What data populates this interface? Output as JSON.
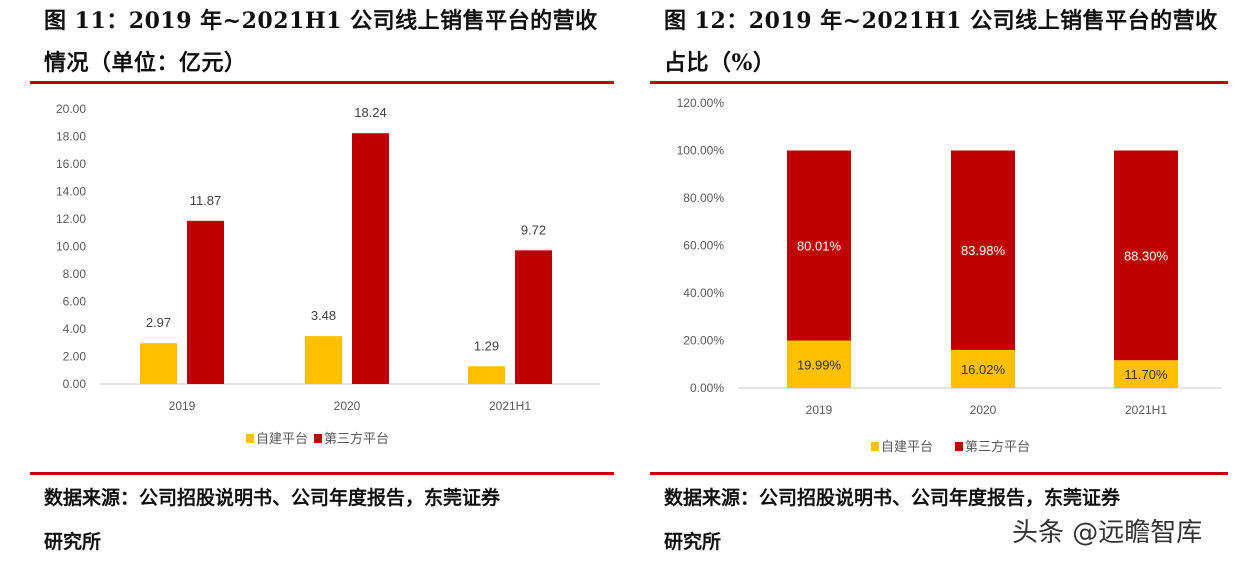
{
  "left": {
    "title_line1": "图 11：2019 年~2021H1 公司线上销售平台的营收",
    "title_line2": "情况（单位：亿元）",
    "source_line1": "数据来源：公司招股说明书、公司年度报告，东莞证券",
    "source_line2": "研究所"
  },
  "right": {
    "title_line1": "图 12：2019 年~2021H1 公司线上销售平台的营收",
    "title_line2": "占比（%）",
    "source_line1": "数据来源：公司招股说明书、公司年度报告，东莞证券",
    "source_line2": "研究所"
  },
  "watermark": "头条 @远瞻智库",
  "colors": {
    "self": "#ffc000",
    "third": "#c00000",
    "rule": "#c00000"
  },
  "chart_data": [
    {
      "type": "bar",
      "categories": [
        "2019",
        "2020",
        "2021H1"
      ],
      "ylim": [
        0,
        20
      ],
      "yticks": [
        "0.00",
        "2.00",
        "4.00",
        "6.00",
        "8.00",
        "10.00",
        "12.00",
        "14.00",
        "16.00",
        "18.00",
        "20.00"
      ],
      "legend": "bottom",
      "grid": false,
      "series": [
        {
          "name": "自建平台",
          "values": [
            2.97,
            3.48,
            1.29
          ],
          "labels": [
            "2.97",
            "3.48",
            "1.29"
          ]
        },
        {
          "name": "第三方平台",
          "values": [
            11.87,
            18.24,
            9.72
          ],
          "labels": [
            "11.87",
            "18.24",
            "9.72"
          ]
        }
      ]
    },
    {
      "type": "bar",
      "stacked": true,
      "categories": [
        "2019",
        "2020",
        "2021H1"
      ],
      "ylim": [
        0,
        120
      ],
      "yticks": [
        "0.00%",
        "20.00%",
        "40.00%",
        "60.00%",
        "80.00%",
        "100.00%",
        "120.00%"
      ],
      "legend": "bottom",
      "grid": false,
      "series": [
        {
          "name": "自建平台",
          "values": [
            19.99,
            16.02,
            11.7
          ],
          "labels": [
            "19.99%",
            "16.02%",
            "11.70%"
          ]
        },
        {
          "name": "第三方平台",
          "values": [
            80.01,
            83.98,
            88.3
          ],
          "labels": [
            "80.01%",
            "83.98%",
            "88.30%"
          ]
        }
      ]
    }
  ]
}
